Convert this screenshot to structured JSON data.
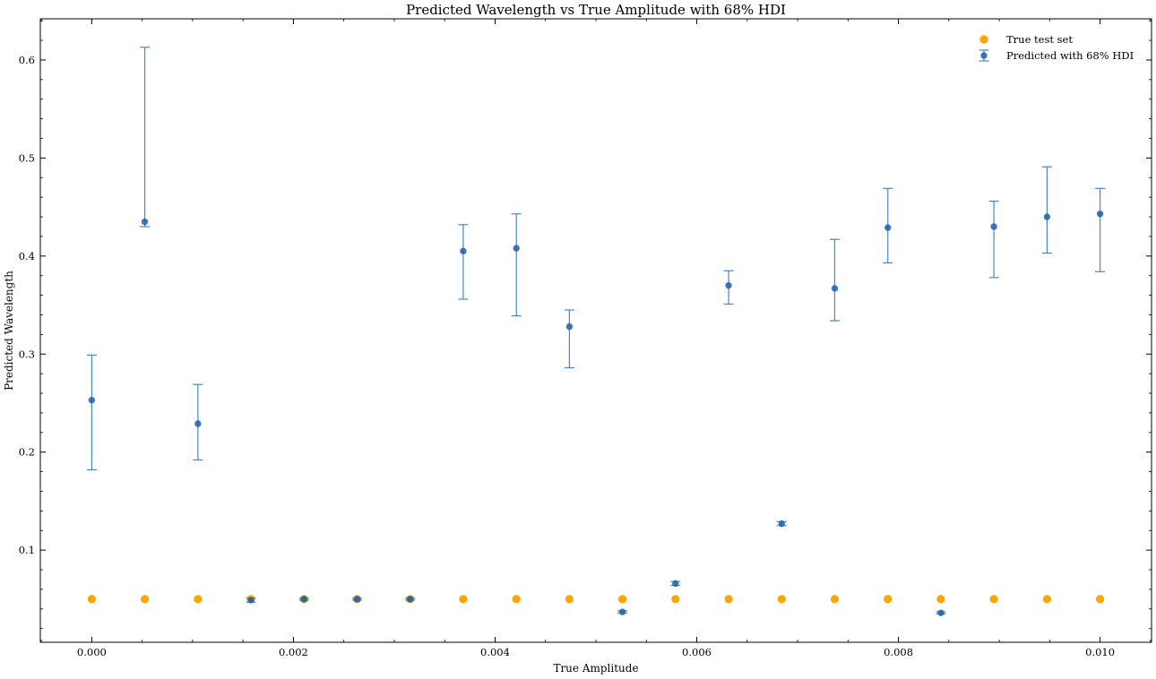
{
  "chart_data": {
    "type": "scatter",
    "title": "Predicted Wavelength vs True Amplitude with 68% HDI",
    "xlabel": "True Amplitude",
    "ylabel": "Predicted Wavelength",
    "xlim": [
      -0.00051,
      0.01051
    ],
    "ylim": [
      0.006,
      0.642
    ],
    "xticks": [
      0.0,
      0.002,
      0.004,
      0.006,
      0.008,
      0.01
    ],
    "xtick_labels": [
      "0.000",
      "0.002",
      "0.004",
      "0.006",
      "0.008",
      "0.010"
    ],
    "yticks": [
      0.1,
      0.2,
      0.3,
      0.4,
      0.5,
      0.6
    ],
    "ytick_labels": [
      "0.1",
      "0.2",
      "0.3",
      "0.4",
      "0.5",
      "0.6"
    ],
    "grid": false,
    "legend_position": "top-right",
    "x": [
      0.0,
      0.000526,
      0.001053,
      0.001579,
      0.002105,
      0.002632,
      0.003158,
      0.003684,
      0.004211,
      0.004737,
      0.005263,
      0.005789,
      0.006316,
      0.006842,
      0.007368,
      0.007895,
      0.008421,
      0.008947,
      0.009474,
      0.01
    ],
    "series": [
      {
        "name": "True test set",
        "kind": "scatter",
        "color": "#ffa500",
        "y": [
          0.05,
          0.05,
          0.05,
          0.05,
          0.05,
          0.05,
          0.05,
          0.05,
          0.05,
          0.05,
          0.05,
          0.05,
          0.05,
          0.05,
          0.05,
          0.05,
          0.05,
          0.05,
          0.05,
          0.05
        ]
      },
      {
        "name": "Predicted with 68% HDI",
        "kind": "errorbar",
        "color": "#1f5fa8",
        "y": [
          0.253,
          0.435,
          0.229,
          0.049,
          0.05,
          0.05,
          0.05,
          0.405,
          0.408,
          0.328,
          0.037,
          0.066,
          0.37,
          0.127,
          0.367,
          0.429,
          0.036,
          0.43,
          0.44,
          0.443
        ],
        "lower": [
          0.182,
          0.43,
          0.192,
          0.047,
          0.049,
          0.049,
          0.049,
          0.356,
          0.339,
          0.286,
          0.036,
          0.064,
          0.351,
          0.125,
          0.334,
          0.393,
          0.035,
          0.378,
          0.403,
          0.384
        ],
        "upper": [
          0.299,
          0.613,
          0.269,
          0.051,
          0.051,
          0.051,
          0.051,
          0.432,
          0.443,
          0.345,
          0.038,
          0.068,
          0.385,
          0.129,
          0.417,
          0.469,
          0.037,
          0.456,
          0.491,
          0.469
        ]
      }
    ]
  }
}
